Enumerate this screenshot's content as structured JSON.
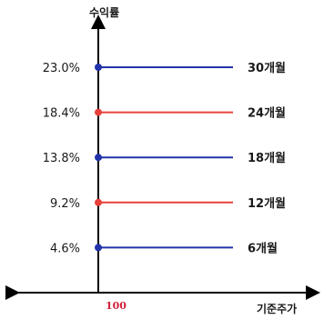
{
  "chart_data": {
    "type": "line",
    "title": "",
    "ylabel": "수익률",
    "xlabel": "기준주가",
    "x_marker": "100",
    "series": [
      {
        "name": "30개월",
        "y_label": "23.0%",
        "y": 23.0,
        "color": "#2233aa"
      },
      {
        "name": "24개월",
        "y_label": "18.4%",
        "y": 18.4,
        "color": "#e8403a"
      },
      {
        "name": "18개월",
        "y_label": "13.8%",
        "y": 13.8,
        "color": "#2233aa"
      },
      {
        "name": "12개월",
        "y_label": "9.2%",
        "y": 9.2,
        "color": "#e8403a"
      },
      {
        "name": "6개월",
        "y_label": "4.6%",
        "y": 4.6,
        "color": "#2233aa"
      }
    ],
    "ylim": [
      0,
      27.6
    ],
    "grid": false,
    "legend": "none"
  }
}
